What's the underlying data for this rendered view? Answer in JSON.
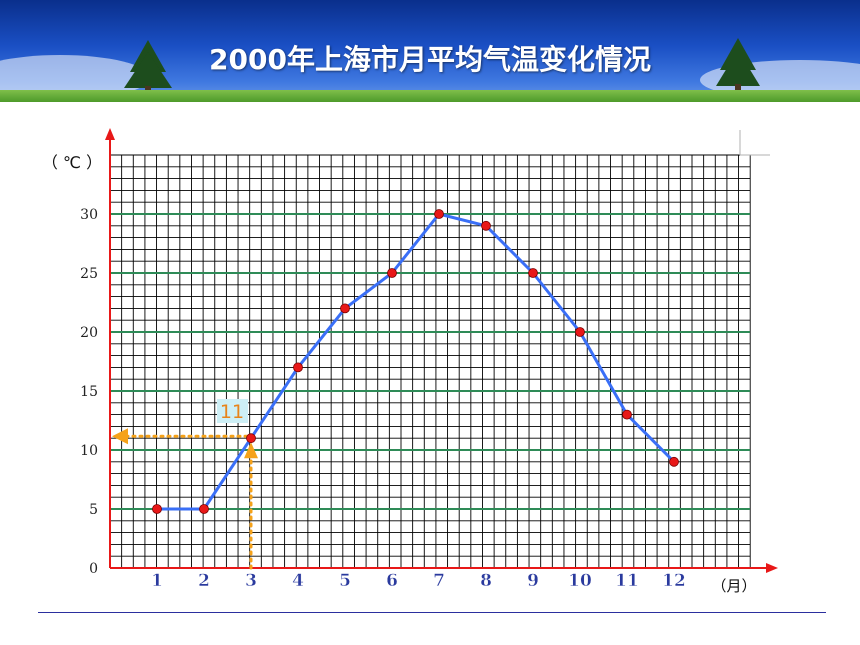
{
  "header": {
    "title": "2000年上海市月平均气温变化情况"
  },
  "chart_data": {
    "type": "line",
    "title": "2000年上海市月平均气温变化情况",
    "xlabel": "（月）",
    "ylabel": "（ ℃ ）",
    "x": [
      1,
      2,
      3,
      4,
      5,
      6,
      7,
      8,
      9,
      10,
      11,
      12
    ],
    "x_tick_labels": [
      "1",
      "2",
      "3",
      "4",
      "5",
      "6",
      "7",
      "8",
      "9",
      "10",
      "11",
      "12"
    ],
    "y_tick_labels": [
      "0",
      "5",
      "10",
      "15",
      "20",
      "25",
      "30"
    ],
    "y_ticks": [
      0,
      5,
      10,
      15,
      20,
      25,
      30
    ],
    "series": [
      {
        "values": [
          5,
          5,
          11,
          17,
          22,
          25,
          30,
          29,
          25,
          20,
          13,
          9
        ]
      }
    ],
    "xlim": [
      0,
      13.5
    ],
    "ylim": [
      0,
      35
    ],
    "grid": true,
    "annotation": {
      "x": 3,
      "y": 11,
      "label": "11"
    },
    "colors": {
      "line": "#3a6ff7",
      "marker": "#e81818",
      "axis": "#e81818",
      "major_grid": "#2e8b57",
      "minor_grid": "#000000",
      "guide": "#f5a21a"
    }
  }
}
